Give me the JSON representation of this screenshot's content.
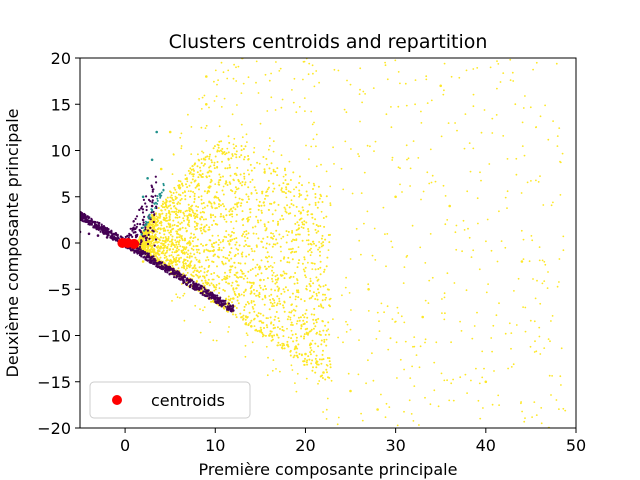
{
  "chart_data": {
    "type": "scatter",
    "title": "Clusters centroids and repartition",
    "xlabel": "Première composante principale",
    "ylabel": "Deuxième composante principale",
    "xlim": [
      -5,
      50
    ],
    "ylim": [
      -20,
      20
    ],
    "xticks": [
      0,
      10,
      20,
      30,
      40,
      50
    ],
    "yticks": [
      -20,
      -15,
      -10,
      -5,
      0,
      5,
      10,
      15,
      20
    ],
    "grid": false,
    "legend": {
      "placement": "lower-left",
      "entries": [
        "centroids"
      ]
    },
    "colors": {
      "cluster_dark": "#440154",
      "cluster_yellow": "#fde725",
      "cluster_teal": "#21918c",
      "centroids": "#ff0000"
    },
    "centroids": {
      "name": "centroids",
      "x": [
        -0.3,
        0.3,
        1.0
      ],
      "y": [
        0.0,
        0.0,
        -0.1
      ]
    },
    "clusters": [
      {
        "color": "#fde725",
        "x": [
          2,
          3,
          4,
          5,
          6,
          7,
          8,
          9,
          10,
          12,
          14,
          16,
          18,
          20,
          22,
          25,
          28,
          30,
          33,
          36,
          40,
          44,
          47,
          13,
          15,
          11,
          9,
          7,
          27,
          35
        ],
        "y": [
          -2,
          3,
          8,
          12,
          6,
          0,
          -3,
          18,
          5,
          -6,
          -9,
          -10,
          -11,
          -12,
          -14,
          -16,
          -18,
          5,
          -8,
          4,
          -15,
          -2,
          -20,
          20,
          -4,
          -7,
          15,
          2,
          -5,
          17
        ]
      },
      {
        "color": "#440154",
        "x": [
          -5,
          -4,
          -3,
          -2,
          -1,
          0,
          1,
          2,
          3,
          4,
          5,
          6,
          7,
          8,
          9,
          10,
          11,
          12,
          1,
          2,
          3
        ],
        "y": [
          1.2,
          1.0,
          0.8,
          0.6,
          0.3,
          0.1,
          -0.4,
          -1.0,
          -1.5,
          -2.2,
          -2.8,
          -3.4,
          -4.0,
          -4.7,
          -5.3,
          -5.9,
          -6.6,
          -7.3,
          1.5,
          2.5,
          4.0
        ]
      },
      {
        "color": "#21918c",
        "x": [
          2,
          2.5,
          3,
          3.5
        ],
        "y": [
          5,
          7,
          9,
          12
        ]
      }
    ]
  }
}
